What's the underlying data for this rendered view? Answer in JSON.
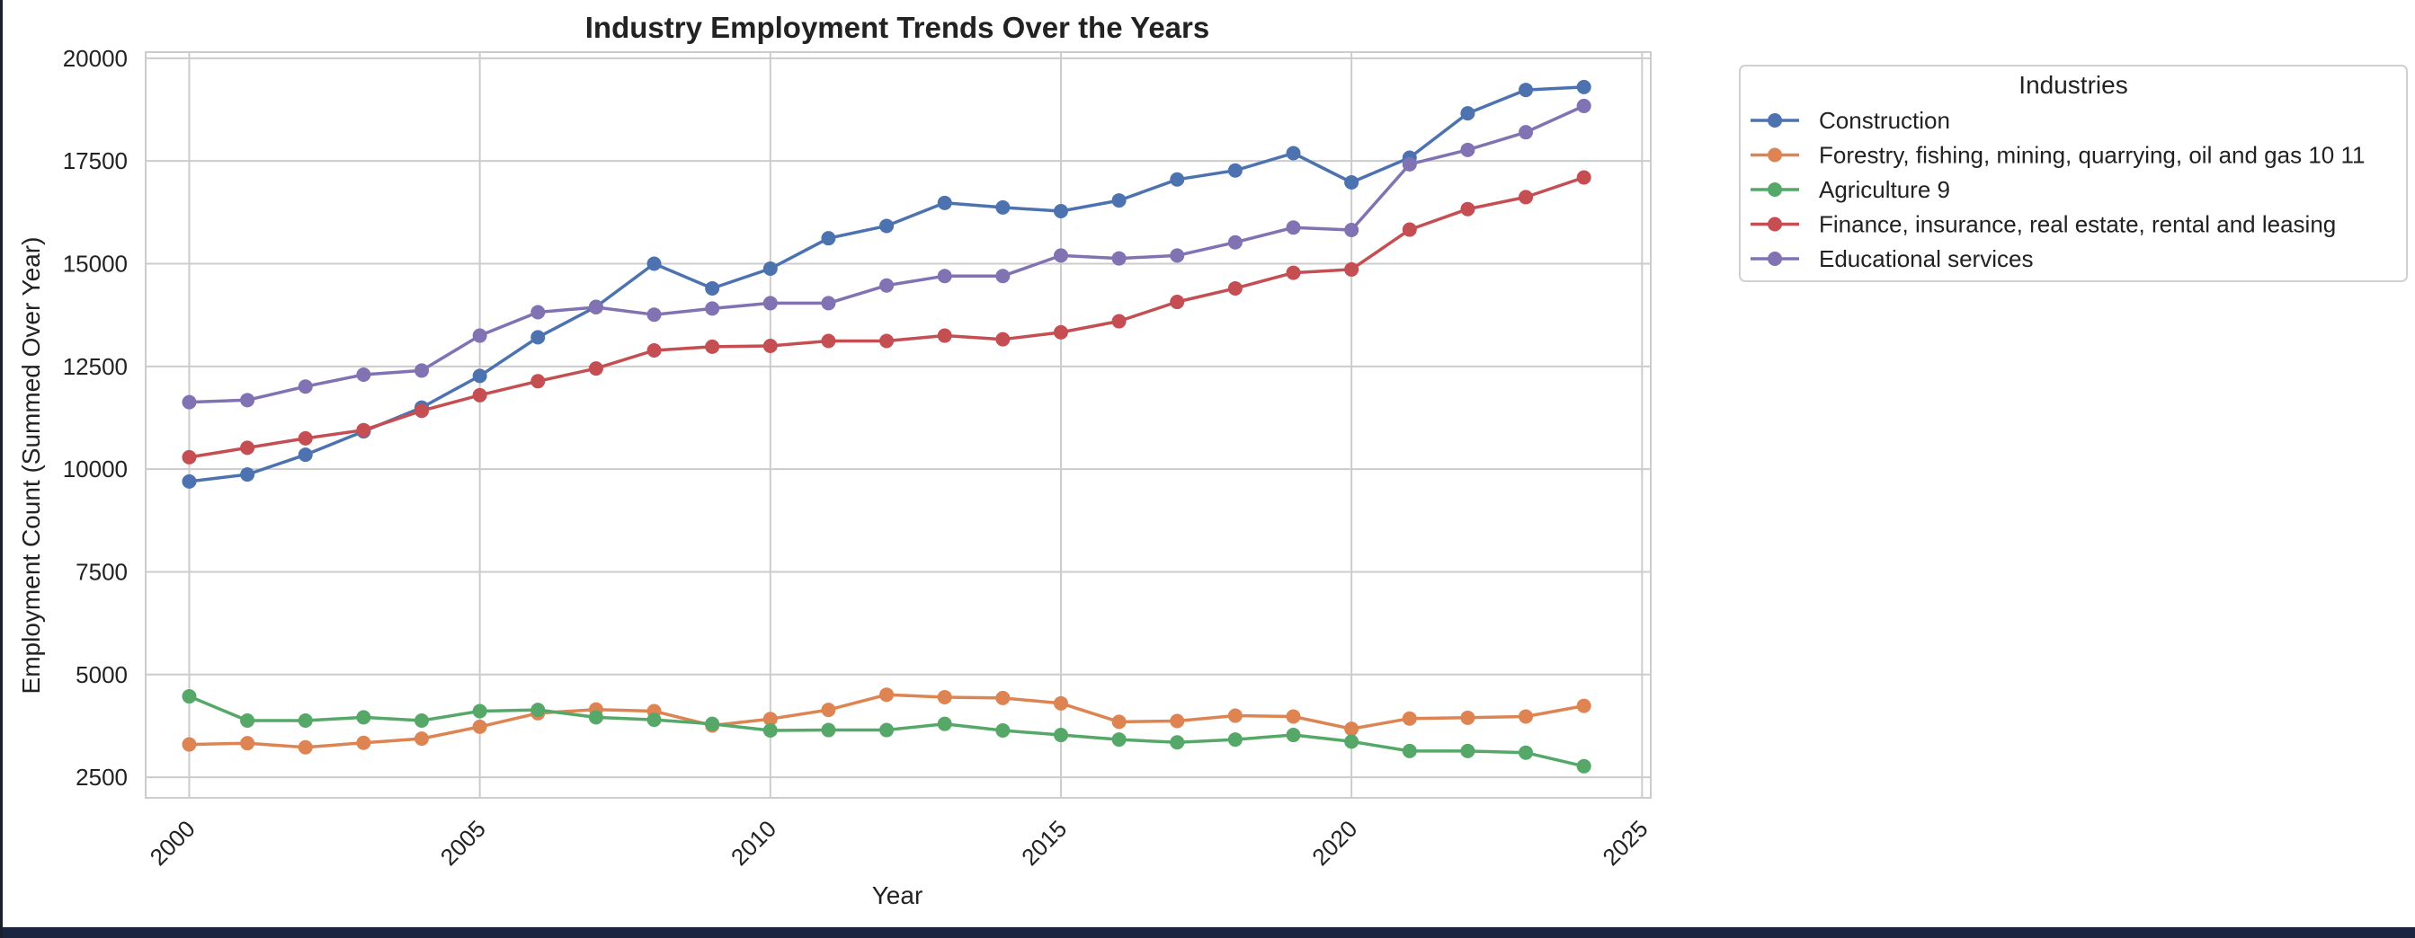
{
  "chart_data": {
    "type": "line",
    "title": "Industry Employment Trends Over the Years",
    "xlabel": "Year",
    "ylabel": "Employment Count (Summed Over Year)",
    "xlim": [
      1999.25,
      2025.15
    ],
    "ylim": [
      2000,
      20150
    ],
    "x_ticks": [
      2000,
      2005,
      2010,
      2015,
      2020,
      2025
    ],
    "y_ticks": [
      2500,
      5000,
      7500,
      10000,
      12500,
      15000,
      17500,
      20000
    ],
    "grid": true,
    "legend": {
      "title": "Industries",
      "position": "outside-top-right"
    },
    "x": [
      2000,
      2001,
      2002,
      2003,
      2004,
      2005,
      2006,
      2007,
      2008,
      2009,
      2010,
      2011,
      2012,
      2013,
      2014,
      2015,
      2016,
      2017,
      2018,
      2019,
      2020,
      2021,
      2022,
      2023,
      2024
    ],
    "series": [
      {
        "name": "Construction",
        "color": "#4c72b0",
        "values": [
          9700,
          9870,
          10350,
          10920,
          11500,
          12270,
          13210,
          13950,
          15000,
          14400,
          14880,
          15620,
          15920,
          16480,
          16370,
          16280,
          16540,
          17050,
          17270,
          17690,
          16980,
          17580,
          18660,
          19230,
          19300
        ]
      },
      {
        "name": "Forestry, fishing, mining, quarrying, oil and gas 10 11",
        "color": "#dd8452",
        "values": [
          3300,
          3330,
          3230,
          3340,
          3440,
          3730,
          4060,
          4150,
          4110,
          3760,
          3920,
          4140,
          4510,
          4450,
          4430,
          4300,
          3850,
          3870,
          4000,
          3980,
          3680,
          3930,
          3950,
          3980,
          4240
        ]
      },
      {
        "name": "Agriculture 9",
        "color": "#55a868",
        "values": [
          4470,
          3880,
          3880,
          3960,
          3880,
          4110,
          4140,
          3960,
          3900,
          3800,
          3640,
          3650,
          3650,
          3800,
          3640,
          3530,
          3420,
          3350,
          3420,
          3530,
          3370,
          3140,
          3140,
          3100,
          2770
        ]
      },
      {
        "name": "Finance, insurance, real estate, rental and leasing",
        "color": "#c44e52",
        "values": [
          10290,
          10520,
          10750,
          10950,
          11420,
          11800,
          12140,
          12450,
          12890,
          12980,
          13000,
          13120,
          13120,
          13250,
          13160,
          13330,
          13600,
          14070,
          14400,
          14780,
          14860,
          15830,
          16330,
          16620,
          17100
        ]
      },
      {
        "name": "Educational services",
        "color": "#8172b3",
        "values": [
          11630,
          11680,
          12010,
          12300,
          12400,
          13250,
          13820,
          13940,
          13760,
          13910,
          14040,
          14040,
          14470,
          14700,
          14700,
          15200,
          15130,
          15200,
          15520,
          15880,
          15820,
          17420,
          17770,
          18200,
          18840
        ]
      }
    ]
  }
}
